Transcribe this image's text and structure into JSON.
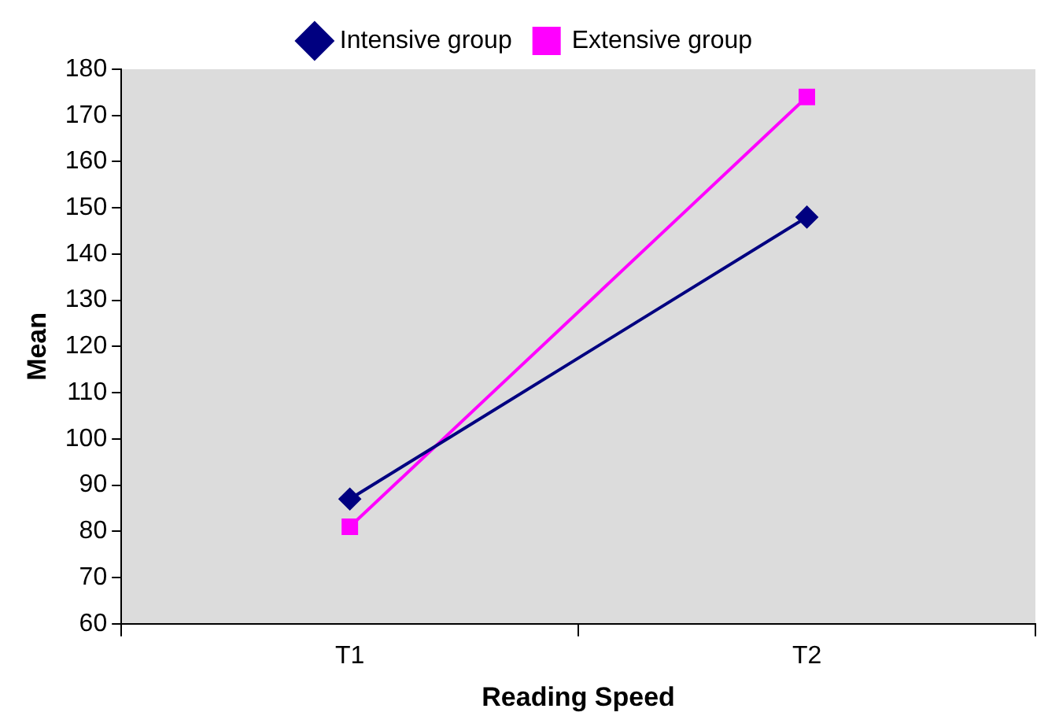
{
  "chart_data": {
    "type": "line",
    "xlabel": "Reading Speed",
    "ylabel": "Mean",
    "categories": [
      "T1",
      "T2"
    ],
    "series": [
      {
        "name": "Intensive group",
        "color": "#000080",
        "values": [
          87,
          148
        ],
        "marker": "diamond"
      },
      {
        "name": "Extensive group",
        "color": "#ff00ff",
        "values": [
          81,
          174
        ],
        "marker": "square"
      }
    ],
    "ylim": [
      60,
      180
    ],
    "yticks": [
      60,
      70,
      80,
      90,
      100,
      110,
      120,
      130,
      140,
      150,
      160,
      170,
      180
    ],
    "grid": false,
    "legend": "top",
    "line_style": "solid"
  }
}
